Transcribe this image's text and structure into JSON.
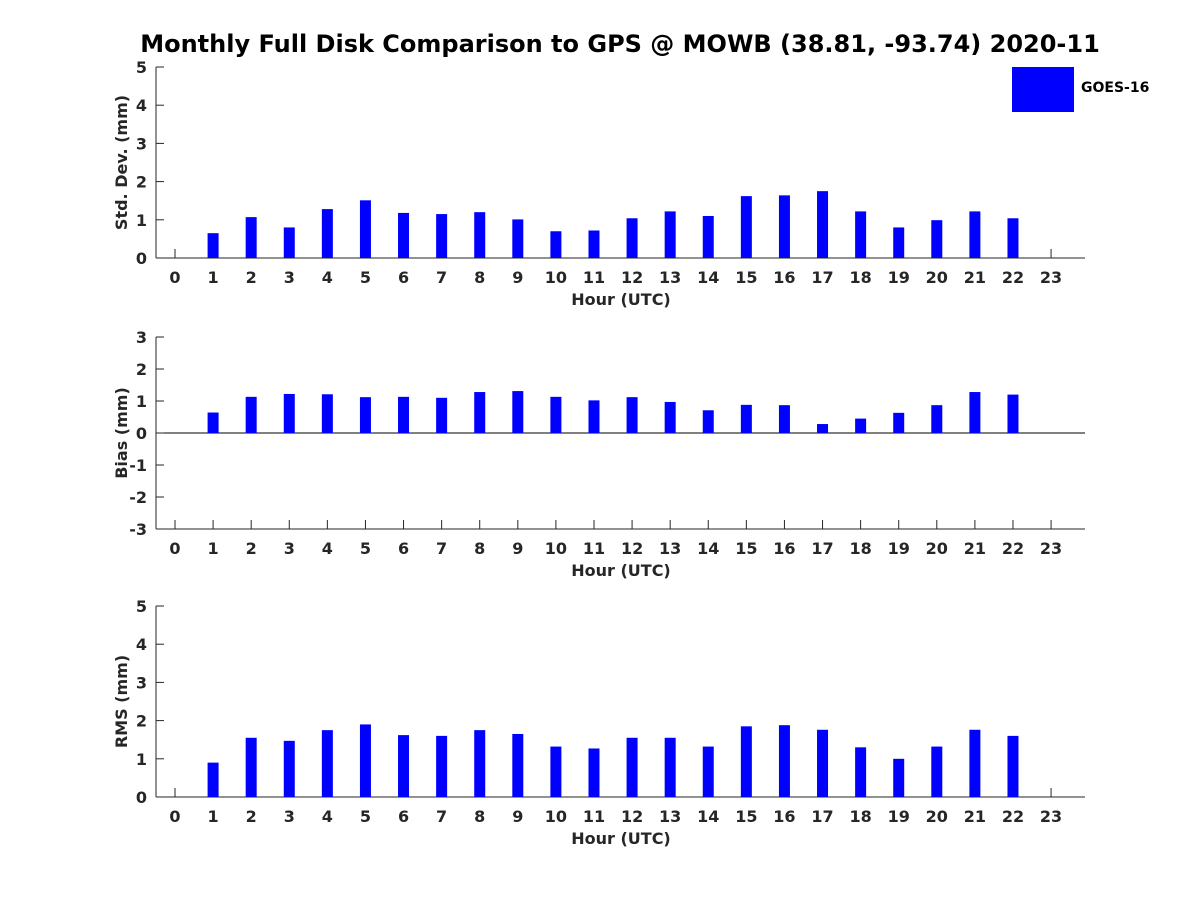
{
  "title": "Monthly Full Disk Comparison to GPS @ MOWB (38.81, -93.74) 2020-11",
  "legend": {
    "label": "GOES-16",
    "color": "#0000ff"
  },
  "chart_data": [
    {
      "type": "bar",
      "ylabel": "Std. Dev. (mm)",
      "xlabel": "Hour (UTC)",
      "ylim": [
        0,
        5
      ],
      "yticks": [
        0,
        1,
        2,
        3,
        4,
        5
      ],
      "categories": [
        "0",
        "1",
        "2",
        "3",
        "4",
        "5",
        "6",
        "7",
        "8",
        "9",
        "10",
        "11",
        "12",
        "13",
        "14",
        "15",
        "16",
        "17",
        "18",
        "19",
        "20",
        "21",
        "22",
        "23"
      ],
      "series": [
        {
          "name": "GOES-16",
          "values": [
            null,
            0.65,
            1.07,
            0.8,
            1.28,
            1.51,
            1.18,
            1.15,
            1.2,
            1.01,
            0.7,
            0.72,
            1.04,
            1.22,
            1.1,
            1.62,
            1.64,
            1.75,
            1.22,
            0.8,
            0.99,
            1.22,
            1.04,
            null
          ]
        }
      ]
    },
    {
      "type": "bar",
      "ylabel": "Bias (mm)",
      "xlabel": "Hour (UTC)",
      "ylim": [
        -3,
        3
      ],
      "yticks": [
        -3,
        -2,
        -1,
        0,
        1,
        2,
        3
      ],
      "zero_line": true,
      "categories": [
        "0",
        "1",
        "2",
        "3",
        "4",
        "5",
        "6",
        "7",
        "8",
        "9",
        "10",
        "11",
        "12",
        "13",
        "14",
        "15",
        "16",
        "17",
        "18",
        "19",
        "20",
        "21",
        "22",
        "23"
      ],
      "series": [
        {
          "name": "GOES-16",
          "values": [
            null,
            0.64,
            1.13,
            1.22,
            1.21,
            1.12,
            1.13,
            1.1,
            1.28,
            1.31,
            1.13,
            1.02,
            1.12,
            0.97,
            0.71,
            0.88,
            0.87,
            0.28,
            0.45,
            0.63,
            0.87,
            1.28,
            1.2,
            null
          ]
        }
      ]
    },
    {
      "type": "bar",
      "ylabel": "RMS (mm)",
      "xlabel": "Hour (UTC)",
      "ylim": [
        0,
        5
      ],
      "yticks": [
        0,
        1,
        2,
        3,
        4,
        5
      ],
      "categories": [
        "0",
        "1",
        "2",
        "3",
        "4",
        "5",
        "6",
        "7",
        "8",
        "9",
        "10",
        "11",
        "12",
        "13",
        "14",
        "15",
        "16",
        "17",
        "18",
        "19",
        "20",
        "21",
        "22",
        "23"
      ],
      "series": [
        {
          "name": "GOES-16",
          "values": [
            null,
            0.9,
            1.55,
            1.47,
            1.75,
            1.9,
            1.62,
            1.6,
            1.75,
            1.65,
            1.32,
            1.27,
            1.55,
            1.55,
            1.32,
            1.85,
            1.88,
            1.76,
            1.3,
            1.0,
            1.32,
            1.76,
            1.6,
            null
          ]
        }
      ]
    }
  ]
}
